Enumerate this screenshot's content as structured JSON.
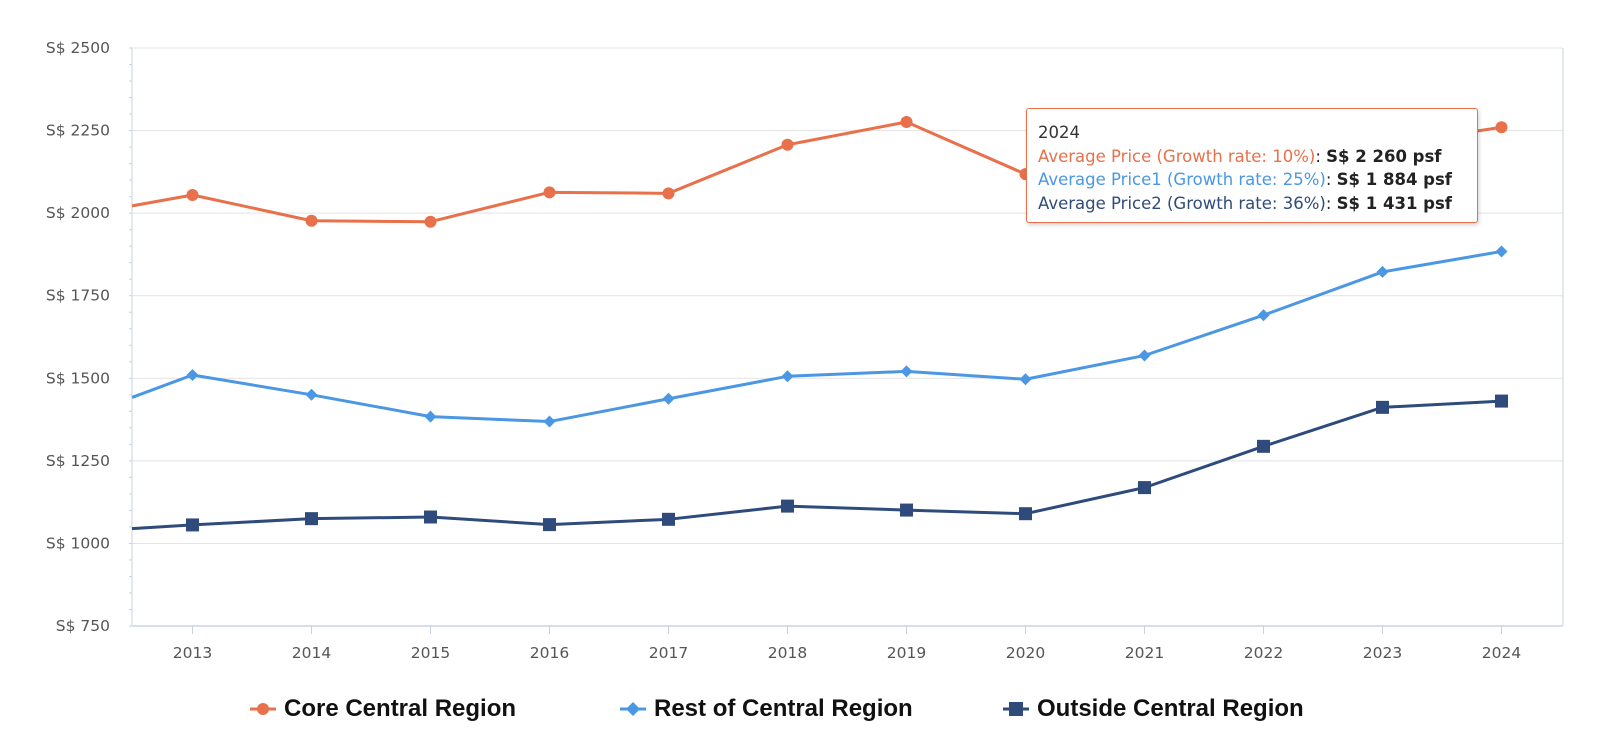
{
  "chart_data": {
    "type": "line",
    "categories": [
      "2013",
      "2014",
      "2015",
      "2016",
      "2017",
      "2018",
      "2019",
      "2020",
      "2021",
      "2022",
      "2023",
      "2024"
    ],
    "y_prefix": "S$ ",
    "y_ticks": [
      750,
      1000,
      1250,
      1500,
      1750,
      2000,
      2250,
      2500
    ],
    "ylim": [
      750,
      2500
    ],
    "grid": true,
    "legend_position": "bottom",
    "series": [
      {
        "name": "Core Central Region",
        "color": "#e8704a",
        "marker": "circle",
        "start": 2022,
        "values": [
          2055,
          1977,
          1974,
          2063,
          2060,
          2207,
          2276,
          2118,
          2155,
          2185,
          2205,
          2260
        ]
      },
      {
        "name": "Rest of Central Region",
        "color": "#4b97e3",
        "marker": "diamond",
        "start": 1442,
        "values": [
          1510,
          1450,
          1384,
          1369,
          1438,
          1506,
          1521,
          1497,
          1569,
          1691,
          1822,
          1884
        ]
      },
      {
        "name": "Outside Central Region",
        "color": "#2f4b7c",
        "marker": "square",
        "start": 1045,
        "values": [
          1056,
          1075,
          1080,
          1057,
          1073,
          1113,
          1101,
          1090,
          1169,
          1294,
          1412,
          1431
        ]
      }
    ],
    "tooltip": {
      "title": "2024",
      "rows": [
        {
          "label": "Average Price (Growth rate: 10%)",
          "value": "S$ 2 260 psf",
          "color": "#e8704a"
        },
        {
          "label": "Average Price1 (Growth rate: 25%)",
          "value": "S$ 1 884 psf",
          "color": "#4b97e3"
        },
        {
          "label": "Average Price2 (Growth rate: 36%)",
          "value": "S$ 1 431 psf",
          "color": "#2f4b7c"
        }
      ]
    }
  }
}
